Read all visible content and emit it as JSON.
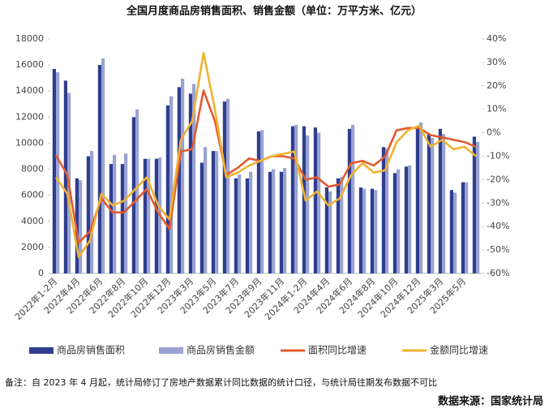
{
  "chart_data": {
    "type": "bar_line",
    "title": "全国月度商品房销售面积、销售金额（单位：万平方米、亿元）",
    "categories": [
      "2022年1-2月",
      null,
      "2022年4月",
      null,
      "2022年6月",
      null,
      "2022年8月",
      null,
      "2022年10月",
      null,
      "2022年12月",
      null,
      "2023年3月",
      null,
      "2023年5月",
      null,
      "2023年7月",
      null,
      "2023年9月",
      null,
      "2023年11月",
      null,
      "2024年1-2月",
      null,
      "2024年4月",
      null,
      "2024年6月",
      null,
      "2024年8月",
      null,
      "2024年10月",
      null,
      "2024年12月",
      null,
      "2025年3月",
      null,
      "2025年5月",
      null
    ],
    "series": [
      {
        "name": "商品房销售面积",
        "color": "#2f3d8e",
        "kind": "bar",
        "values": [
          15700,
          14800,
          7300,
          9000,
          16000,
          8400,
          8400,
          12000,
          8800,
          8800,
          12900,
          14300,
          13800,
          8500,
          9400,
          13200,
          7300,
          7300,
          10900,
          7800,
          7800,
          11300,
          11300,
          11200,
          6600,
          7300,
          11100,
          6600,
          6500,
          9700,
          7700,
          8200,
          11100,
          10700,
          11100,
          6400,
          7000,
          10500
        ]
      },
      {
        "name": "商品房销售金额",
        "color": "#9aa3d2",
        "kind": "bar",
        "values": [
          15450,
          13850,
          7150,
          9400,
          16500,
          9100,
          9200,
          12600,
          8800,
          8900,
          13600,
          14950,
          14550,
          9700,
          9400,
          13400,
          7600,
          7800,
          11000,
          8000,
          8100,
          11400,
          10600,
          10800,
          6300,
          7400,
          11400,
          6500,
          6400,
          9600,
          8000,
          8300,
          11600,
          10400,
          10700,
          6200,
          7000,
          10100
        ]
      },
      {
        "name": "面积同比增速",
        "color": "#e25b2f",
        "kind": "line",
        "axis": "y2",
        "values": [
          -9.6,
          -18,
          -47,
          -42,
          -28,
          -34,
          -34,
          -29,
          -24,
          -34,
          -41,
          -8,
          -7,
          18,
          5,
          -18,
          -15,
          -11,
          -12,
          -10,
          -10,
          -11,
          -20,
          -19,
          -23,
          -22,
          -13,
          -12,
          -14,
          -10,
          1,
          2,
          2,
          -1,
          -2,
          -3,
          -4,
          -6
        ]
      },
      {
        "name": "金额同比增速",
        "color": "#f0b232",
        "kind": "line",
        "axis": "y2",
        "values": [
          -19,
          -26,
          -53,
          -46,
          -26,
          -31,
          -29,
          -24,
          -19,
          -31,
          -37,
          -3,
          5,
          34,
          10,
          -19,
          -17,
          -14,
          -12,
          -10,
          -9,
          -8,
          -29,
          -25,
          -31,
          -28,
          -18,
          -13,
          -17,
          -16,
          -4,
          1,
          3,
          -6,
          -3,
          -7,
          -6,
          -10
        ]
      }
    ],
    "ylim": [
      0,
      18000
    ],
    "yticks": [
      0,
      2000,
      4000,
      6000,
      8000,
      10000,
      12000,
      14000,
      16000,
      18000
    ],
    "y2lim": [
      -60,
      40
    ],
    "y2ticks": [
      {
        "value": -60,
        "label": "-60%"
      },
      {
        "value": -50,
        "label": "-50%"
      },
      {
        "value": -40,
        "label": "-40%"
      },
      {
        "value": -30,
        "label": "-30%"
      },
      {
        "value": -20,
        "label": "-20%"
      },
      {
        "value": -10,
        "label": "-10%"
      },
      {
        "value": 0,
        "label": "0%"
      },
      {
        "value": 10,
        "label": "10%"
      },
      {
        "value": 20,
        "label": "20%"
      },
      {
        "value": 30,
        "label": "30%"
      },
      {
        "value": 40,
        "label": "40%"
      }
    ],
    "legend": "bottom",
    "note": "备注：自 2023 年 4 月起，统计局修订了房地产数据累计同比数据的统计口径，与统计局往期发布数据不可比",
    "source": "数据来源：国家统计局"
  }
}
